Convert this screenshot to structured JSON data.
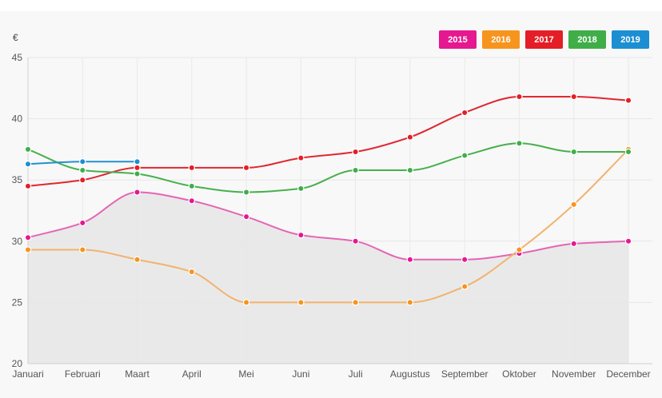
{
  "chart_data": {
    "type": "line",
    "unit": "€",
    "categories": [
      "Januari",
      "Februari",
      "Maart",
      "April",
      "Mei",
      "Juni",
      "Juli",
      "Augustus",
      "September",
      "Oktober",
      "November",
      "December"
    ],
    "ylim": [
      20,
      45
    ],
    "yticks": [
      20,
      25,
      30,
      35,
      40,
      45
    ],
    "grid": true,
    "legend_position": "top-right",
    "series": [
      {
        "name": "2015",
        "color": "#e5188f",
        "line_color": "#e565b4",
        "values": [
          30.3,
          31.5,
          34.0,
          33.3,
          32.0,
          30.5,
          30.0,
          28.5,
          28.5,
          29.0,
          29.8,
          30.0
        ]
      },
      {
        "name": "2016",
        "color": "#f7941d",
        "line_color": "#f2b36d",
        "values": [
          29.3,
          29.3,
          28.5,
          27.5,
          25.0,
          25.0,
          25.0,
          25.0,
          26.3,
          29.3,
          33.0,
          37.5
        ]
      },
      {
        "name": "2017",
        "color": "#e41e26",
        "line_color": "#e02730",
        "values": [
          34.5,
          35.0,
          36.0,
          36.0,
          36.0,
          36.8,
          37.3,
          38.5,
          40.5,
          41.8,
          41.8,
          41.5
        ]
      },
      {
        "name": "2018",
        "color": "#3fae49",
        "line_color": "#46b04c",
        "values": [
          37.5,
          35.8,
          35.5,
          34.5,
          34.0,
          34.3,
          35.8,
          35.8,
          37.0,
          38.0,
          37.3,
          37.3
        ]
      },
      {
        "name": "2019",
        "color": "#1b8fd2",
        "line_color": "#2390d0",
        "values": [
          36.3,
          36.5,
          36.5,
          null,
          null,
          null,
          null,
          null,
          null,
          null,
          null,
          null
        ]
      }
    ]
  }
}
